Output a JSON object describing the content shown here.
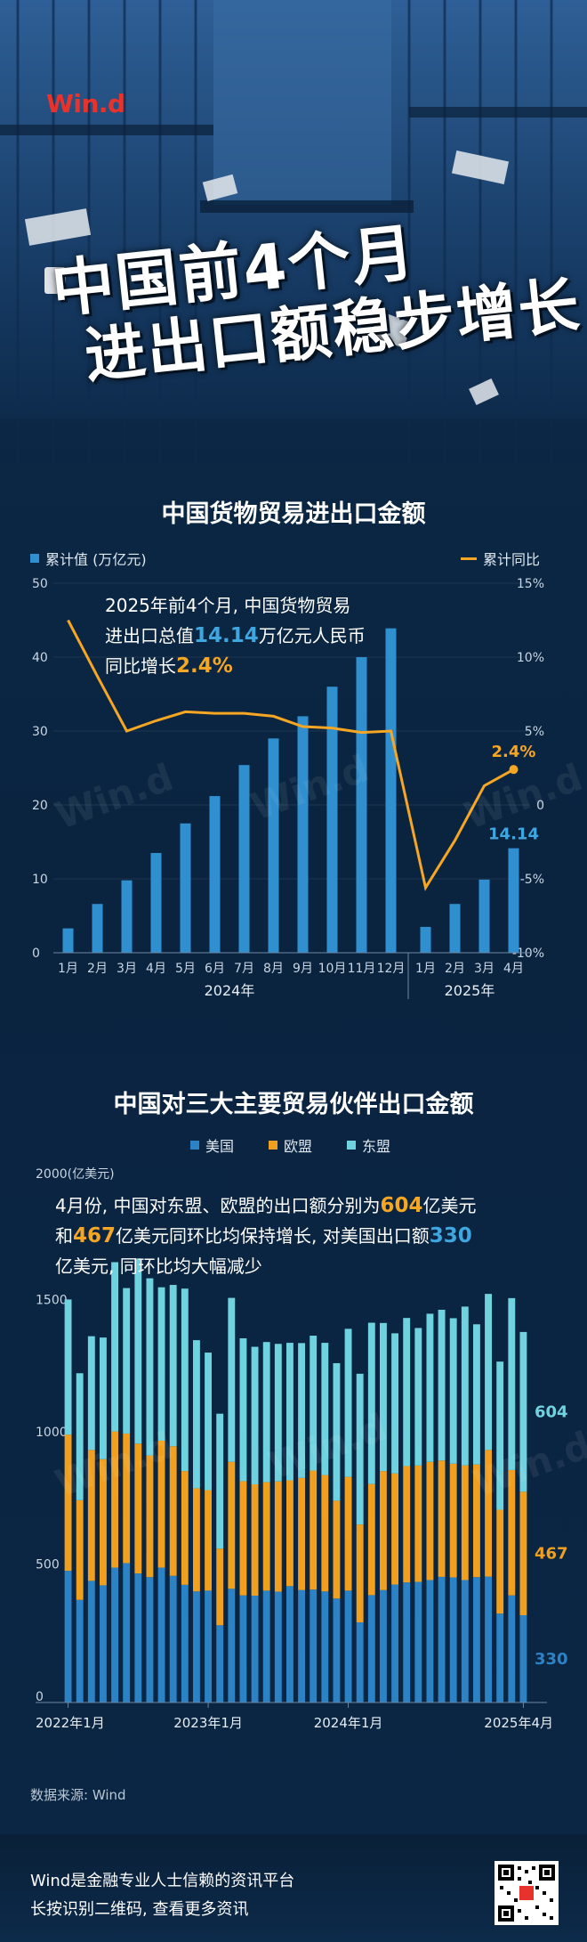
{
  "brand": {
    "logo": "Win.d",
    "logo_color": "#e8332d"
  },
  "hero": {
    "title_line1": "中国前4个月",
    "title_line2": "进出口额稳步增长"
  },
  "chart1": {
    "title": "中国货物贸易进出口金额",
    "legend_bar": "累计值 (万亿元)",
    "legend_line": "累计同比",
    "annotation": {
      "line1": "2025年前4个月, 中国货物贸易",
      "line2_pre": "进出口总值",
      "line2_value": "14.14",
      "line2_post": "万亿元人民币",
      "line3_pre": "同比增长",
      "line3_value": "2.4%"
    },
    "year_labels": [
      "2024年",
      "2025年"
    ],
    "bar_label": "14.14",
    "line_label": "2.4%"
  },
  "chart2": {
    "title": "中国对三大主要贸易伙伴出口金额",
    "legend": [
      "美国",
      "欧盟",
      "东盟"
    ],
    "unit_label": "2000(亿美元)",
    "annotation": {
      "pre1": "4月份, 中国对东盟、欧盟的出口额分别为",
      "v1": "604",
      "post1": "亿美元",
      "pre2": "和",
      "v2": "467",
      "mid2": "亿美元同环比均保持增长, 对美国出口额",
      "v3": "330",
      "line3": "亿美元, 同环比均大幅减少"
    },
    "end_labels": [
      "604",
      "467",
      "330"
    ],
    "x_labels": [
      "2022年1月",
      "2023年1月",
      "2024年1月",
      "2025年4月"
    ]
  },
  "source": "数据来源: Wind",
  "footer": {
    "line1": "Wind是金融专业人士信赖的资讯平台",
    "line2": "长按识别二维码, 查看更多资讯"
  },
  "colors": {
    "bar_blue": "#2f8fcf",
    "line_orange": "#f5a623",
    "eu_orange": "#f0a01e",
    "asean_cyan": "#6fd3df",
    "us_blue": "#2b82c4"
  },
  "chart_data": [
    {
      "type": "bar",
      "title": "中国货物贸易进出口金额",
      "categories": [
        "1月",
        "2月",
        "3月",
        "4月",
        "5月",
        "6月",
        "7月",
        "8月",
        "9月",
        "10月",
        "11月",
        "12月",
        "1月",
        "2月",
        "3月",
        "4月"
      ],
      "series": [
        {
          "name": "累计值 (万亿元)",
          "type": "bar",
          "values": [
            3.3,
            6.6,
            9.8,
            13.5,
            17.5,
            21.2,
            25.4,
            29.0,
            32.0,
            36.0,
            40.0,
            43.9,
            3.5,
            6.6,
            9.9,
            14.14
          ]
        },
        {
          "name": "累计同比",
          "type": "line",
          "axis": "right",
          "values": [
            12.5,
            8.7,
            5.0,
            5.7,
            6.3,
            6.2,
            6.2,
            6.0,
            5.3,
            5.2,
            4.9,
            5.0,
            -5.6,
            -2.4,
            1.3,
            2.4
          ]
        }
      ],
      "ylim": [
        0,
        50
      ],
      "y2lim": [
        -10,
        15
      ],
      "yticks": [
        0,
        10,
        20,
        30,
        40,
        50
      ],
      "y2ticks": [
        "-10%",
        "-5%",
        "0",
        "5%",
        "10%",
        "15%"
      ]
    },
    {
      "type": "bar",
      "stacked": true,
      "title": "中国对三大主要贸易伙伴出口金额",
      "x_start": "2022年1月",
      "x_end": "2025年4月",
      "ylim": [
        0,
        2000
      ],
      "yticks": [
        0,
        500,
        1000,
        1500
      ],
      "series": [
        {
          "name": "美国",
          "values": [
            498,
            388,
            460,
            443,
            510,
            527,
            488,
            474,
            510,
            479,
            445,
            420,
            423,
            292,
            430,
            405,
            404,
            423,
            419,
            440,
            425,
            427,
            420,
            393,
            423,
            303,
            406,
            425,
            446,
            454,
            456,
            463,
            475,
            473,
            463,
            474,
            476,
            336,
            405,
            330
          ]
        },
        {
          "name": "欧盟",
          "values": [
            515,
            377,
            495,
            477,
            515,
            490,
            491,
            460,
            480,
            490,
            430,
            390,
            380,
            290,
            480,
            432,
            421,
            410,
            417,
            400,
            424,
            450,
            440,
            370,
            430,
            370,
            420,
            450,
            420,
            440,
            440,
            447,
            440,
            430,
            434,
            426,
            479,
            393,
            474,
            467
          ]
        },
        {
          "name": "东盟",
          "values": [
            511,
            480,
            430,
            460,
            640,
            550,
            700,
            670,
            580,
            610,
            690,
            560,
            520,
            510,
            620,
            540,
            520,
            530,
            520,
            520,
            510,
            510,
            500,
            520,
            560,
            570,
            610,
            560,
            530,
            560,
            520,
            560,
            570,
            550,
            600,
            530,
            590,
            560,
            650,
            604
          ]
        }
      ]
    }
  ]
}
